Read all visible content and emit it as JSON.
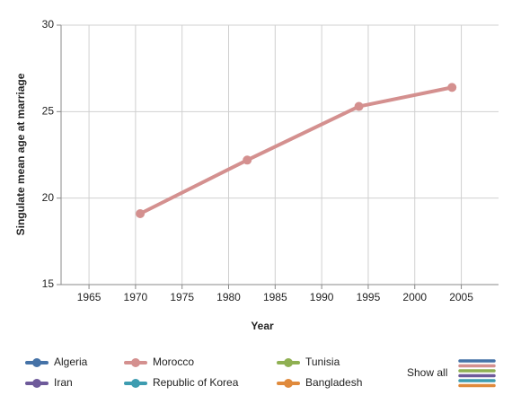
{
  "chart_data": {
    "type": "line",
    "x_label": "Year",
    "y_label": "Singulate mean age at marriage",
    "x": [
      1970.5,
      1982,
      1994,
      2004
    ],
    "series": [
      {
        "name": "Algeria",
        "color": "#4572a7",
        "values": [
          null,
          null,
          null,
          null
        ]
      },
      {
        "name": "Morocco",
        "color": "#d4908f",
        "values": [
          19.1,
          22.2,
          25.3,
          26.4
        ]
      },
      {
        "name": "Tunisia",
        "color": "#8fb052",
        "values": [
          null,
          null,
          null,
          null
        ]
      },
      {
        "name": "Iran",
        "color": "#6e5a9a",
        "values": [
          null,
          null,
          null,
          null
        ]
      },
      {
        "name": "Republic of Korea",
        "color": "#3d9cb0",
        "values": [
          null,
          null,
          null,
          null
        ]
      },
      {
        "name": "Bangladesh",
        "color": "#e08a3c",
        "values": [
          null,
          null,
          null,
          null
        ]
      }
    ],
    "xlim": [
      1962,
      2009
    ],
    "xticks": [
      1965,
      1970,
      1975,
      1980,
      1985,
      1990,
      1995,
      2000,
      2005
    ],
    "ylim": [
      15,
      30
    ],
    "yticks": [
      15,
      20,
      25,
      30
    ],
    "grid": true,
    "show_all": "Show all"
  }
}
